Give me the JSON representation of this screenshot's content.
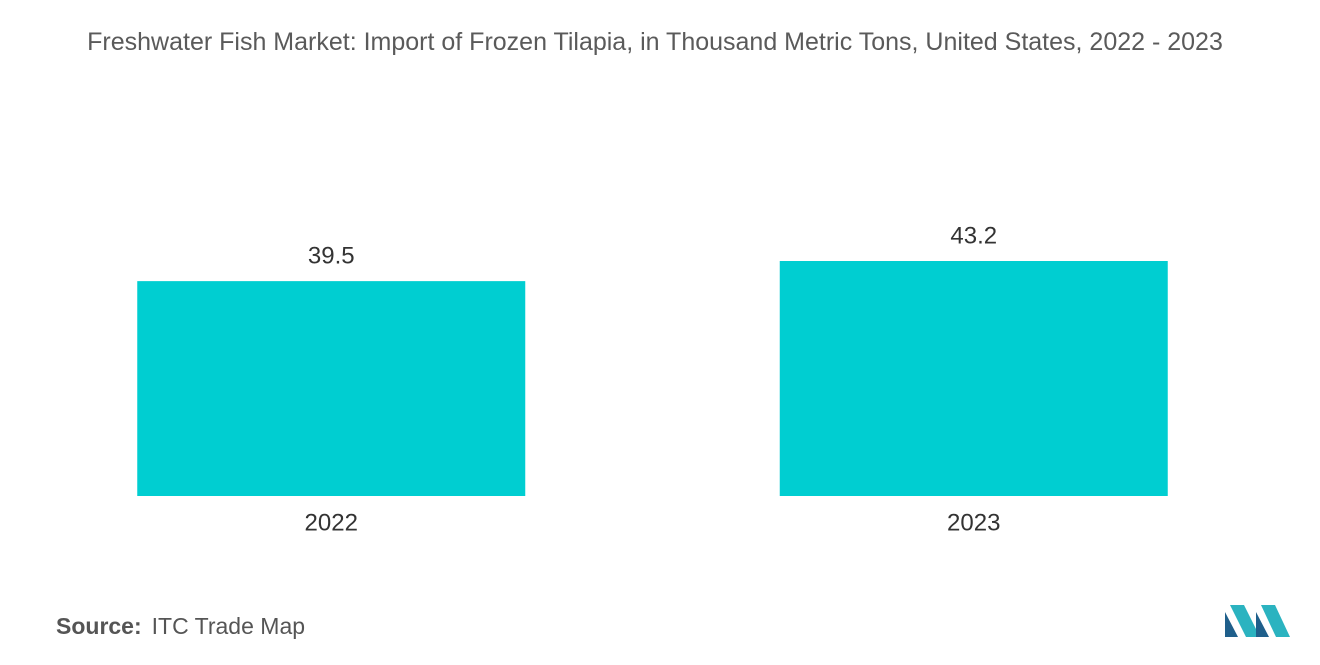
{
  "chart_data": {
    "type": "bar",
    "title": "Freshwater Fish Market: Import of Frozen Tilapia, in Thousand Metric Tons, United States, 2022 - 2023",
    "categories": [
      "2022",
      "2023"
    ],
    "values": [
      39.5,
      43.2
    ],
    "color": "#00ced1",
    "source_label": "Source:",
    "source": "ITC Trade Map"
  }
}
